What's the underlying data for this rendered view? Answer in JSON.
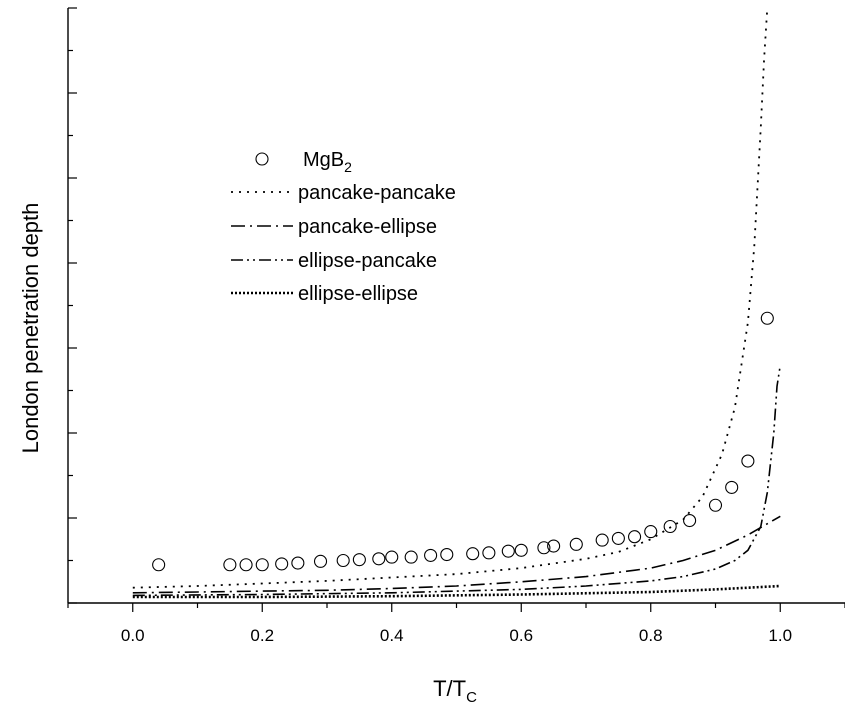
{
  "chart_data": {
    "type": "scatter",
    "title": "",
    "xlabel": "T/T",
    "xlabel_sub": "C",
    "ylabel": "London penetration depth",
    "xlim": [
      -0.1,
      1.1
    ],
    "ylim": [
      0,
      7
    ],
    "y_tick_labels_shown": false,
    "xticks": [
      0.0,
      0.2,
      0.4,
      0.6,
      0.8,
      1.0
    ],
    "xtick_labels": [
      "0.0",
      "0.2",
      "0.4",
      "0.6",
      "0.8",
      "1.0"
    ],
    "grid": false,
    "legend_position": "upper-left",
    "series": [
      {
        "name": "MgB",
        "name_sub": "2",
        "style": "open-circle",
        "x": [
          0.04,
          0.15,
          0.175,
          0.2,
          0.23,
          0.255,
          0.29,
          0.325,
          0.35,
          0.38,
          0.4,
          0.43,
          0.46,
          0.485,
          0.525,
          0.55,
          0.58,
          0.6,
          0.635,
          0.65,
          0.685,
          0.725,
          0.75,
          0.775,
          0.8,
          0.83,
          0.86,
          0.9,
          0.925,
          0.95,
          0.98
        ],
        "y": [
          0.45,
          0.45,
          0.45,
          0.45,
          0.46,
          0.47,
          0.49,
          0.5,
          0.51,
          0.52,
          0.54,
          0.54,
          0.56,
          0.57,
          0.58,
          0.59,
          0.61,
          0.62,
          0.65,
          0.67,
          0.69,
          0.74,
          0.76,
          0.78,
          0.84,
          0.9,
          0.97,
          1.15,
          1.36,
          1.67,
          3.35
        ]
      },
      {
        "name": "pancake-pancake",
        "style": "dotted",
        "x": [
          0.0,
          0.1,
          0.2,
          0.3,
          0.4,
          0.5,
          0.6,
          0.7,
          0.75,
          0.8,
          0.85,
          0.88,
          0.91,
          0.93,
          0.95,
          0.96,
          0.97,
          0.975,
          0.98
        ],
        "y": [
          0.18,
          0.2,
          0.23,
          0.26,
          0.3,
          0.34,
          0.41,
          0.52,
          0.6,
          0.75,
          0.98,
          1.25,
          1.75,
          2.3,
          3.3,
          4.2,
          5.6,
          6.4,
          7.0
        ]
      },
      {
        "name": "pancake-ellipse",
        "style": "dash-dot",
        "x": [
          0.0,
          0.1,
          0.2,
          0.3,
          0.4,
          0.5,
          0.6,
          0.7,
          0.8,
          0.85,
          0.9,
          0.95,
          1.0
        ],
        "y": [
          0.12,
          0.13,
          0.14,
          0.15,
          0.17,
          0.2,
          0.25,
          0.31,
          0.41,
          0.5,
          0.62,
          0.8,
          1.02
        ]
      },
      {
        "name": "ellipse-pancake",
        "style": "dash-dot-dot",
        "x": [
          0.0,
          0.2,
          0.4,
          0.6,
          0.7,
          0.8,
          0.85,
          0.9,
          0.93,
          0.95,
          0.97,
          0.98,
          0.99,
          0.995,
          1.0
        ],
        "y": [
          0.09,
          0.1,
          0.12,
          0.16,
          0.2,
          0.26,
          0.31,
          0.4,
          0.5,
          0.62,
          0.9,
          1.3,
          2.0,
          2.55,
          2.8
        ]
      },
      {
        "name": "ellipse-ellipse",
        "style": "dense-dotted",
        "x": [
          0.0,
          0.2,
          0.4,
          0.6,
          0.8,
          0.9,
          1.0
        ],
        "y": [
          0.07,
          0.07,
          0.08,
          0.1,
          0.13,
          0.16,
          0.2
        ]
      }
    ]
  }
}
